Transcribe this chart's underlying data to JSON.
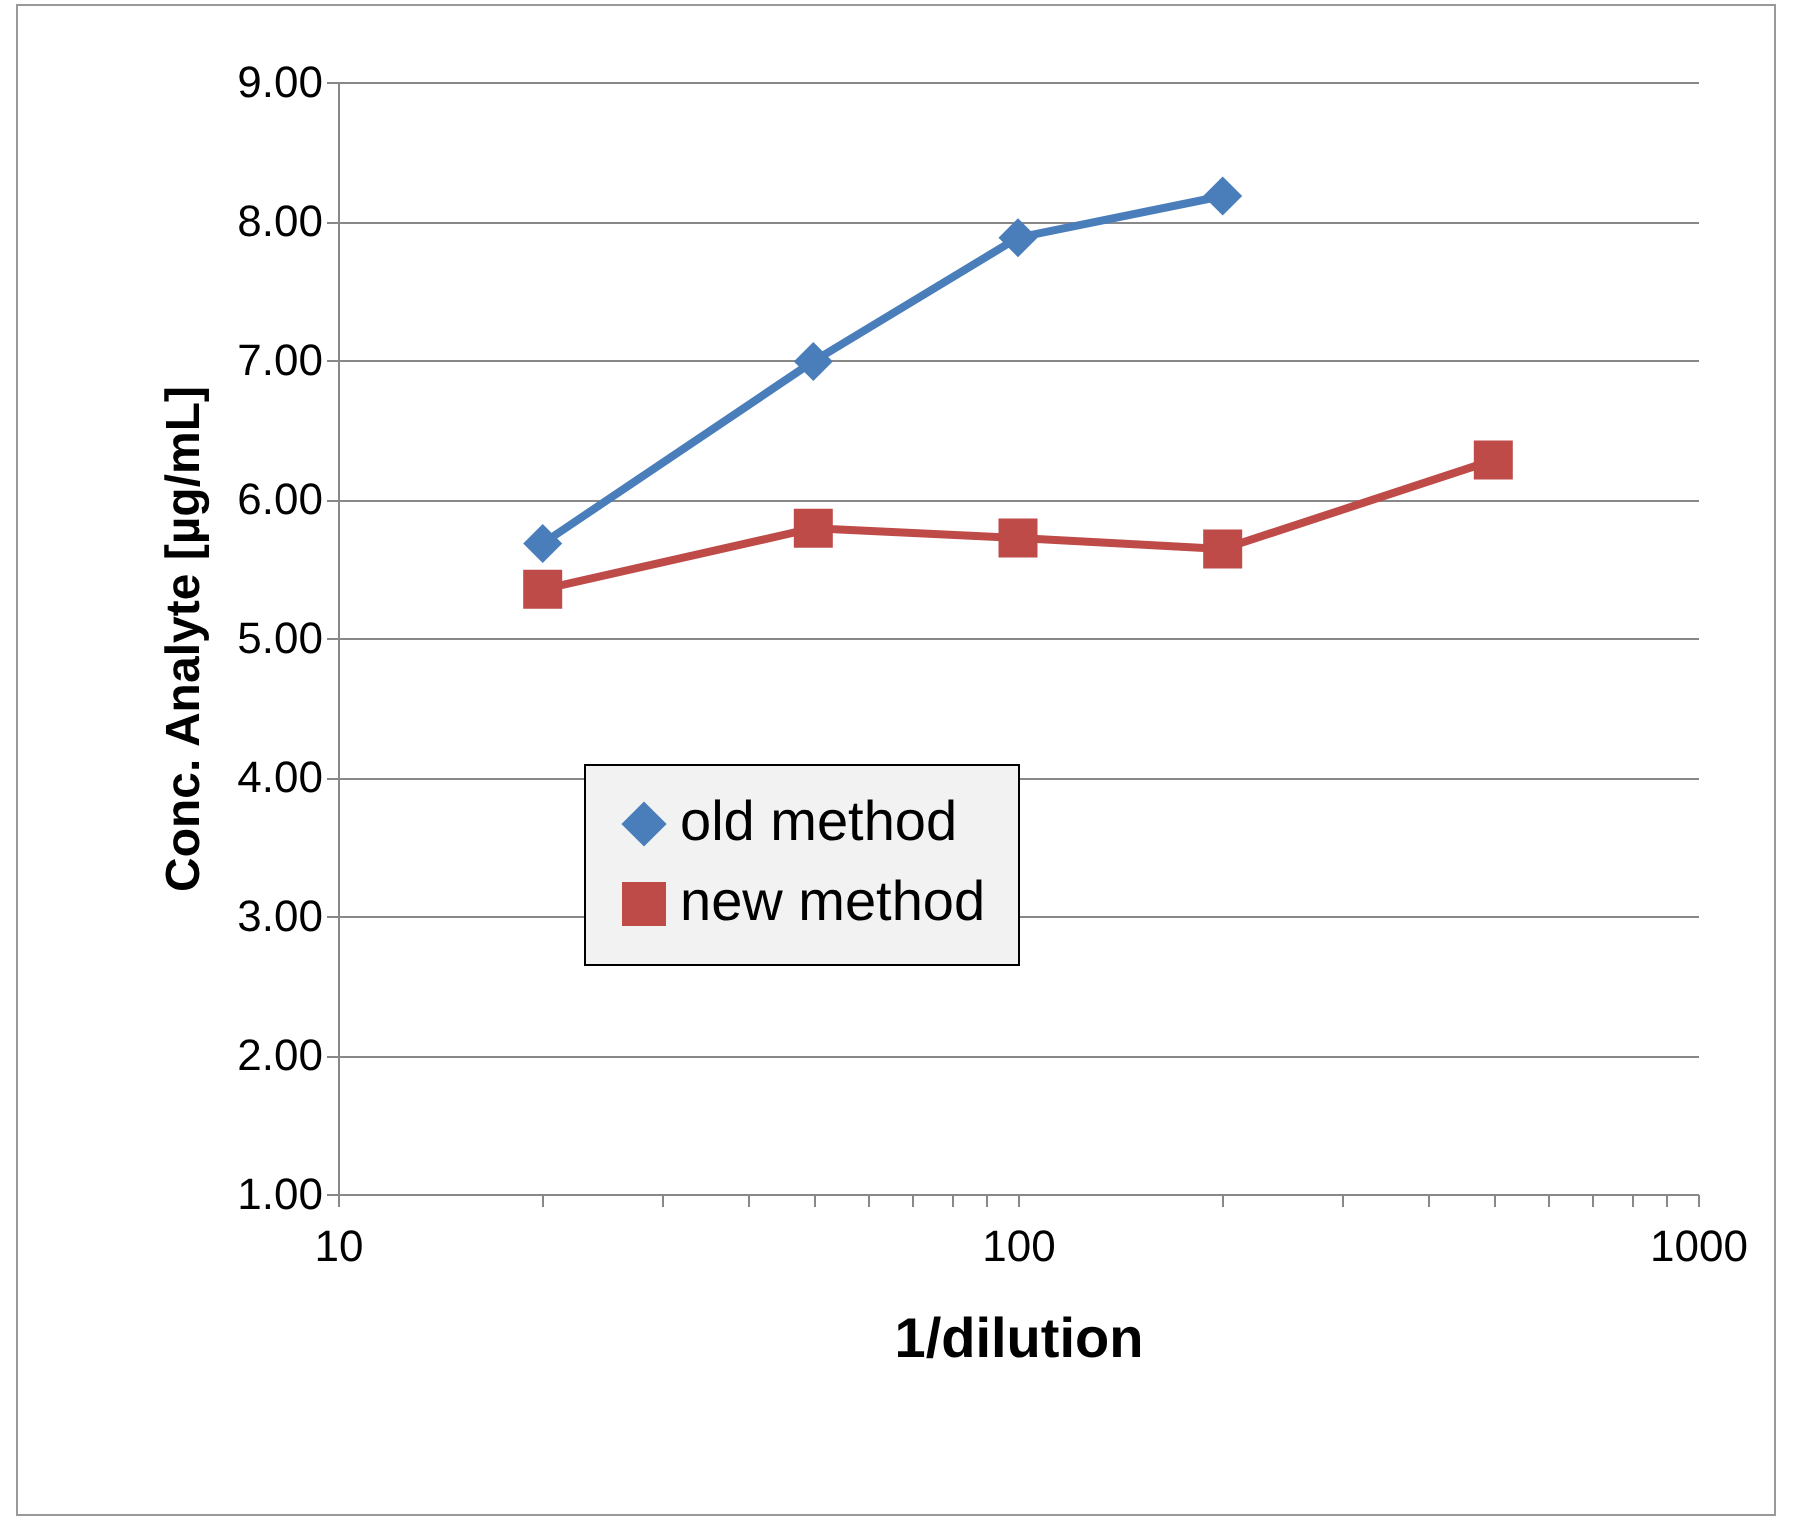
{
  "chart_data": {
    "type": "line",
    "xlabel": "1/dilution",
    "ylabel": "Conc. Analyte [µg/mL]",
    "series": [
      {
        "name": "old method",
        "color": "#4a7ebb",
        "marker": "diamond",
        "x": [
          20,
          50,
          100,
          200
        ],
        "values": [
          5.68,
          6.99,
          7.88,
          8.18
        ]
      },
      {
        "name": "new method",
        "color": "#be4b48",
        "marker": "square",
        "x": [
          20,
          50,
          100,
          200,
          500
        ],
        "values": [
          5.35,
          5.79,
          5.72,
          5.64,
          6.28
        ]
      }
    ],
    "log": "x",
    "xlim": [
      10,
      1000
    ],
    "xticks": [
      10,
      {
        "value": 20,
        "label": null
      },
      {
        "value": 30,
        "label": null
      },
      {
        "value": 40,
        "label": null
      },
      {
        "value": 50,
        "label": null
      },
      {
        "value": 60,
        "label": null
      },
      {
        "value": 70,
        "label": null
      },
      {
        "value": 80,
        "label": null
      },
      {
        "value": 90,
        "label": null
      },
      100,
      {
        "value": 200,
        "label": null
      },
      {
        "value": 300,
        "label": null
      },
      {
        "value": 400,
        "label": null
      },
      {
        "value": 500,
        "label": null
      },
      {
        "value": 600,
        "label": null
      },
      {
        "value": 700,
        "label": null
      },
      {
        "value": 800,
        "label": null
      },
      {
        "value": 900,
        "label": null
      },
      1000
    ],
    "ylim": [
      1,
      9
    ],
    "yticks": [
      {
        "value": 1,
        "label": "1.00"
      },
      {
        "value": 2,
        "label": "2.00"
      },
      {
        "value": 3,
        "label": "3.00"
      },
      {
        "value": 4,
        "label": "4.00"
      },
      {
        "value": 5,
        "label": "5.00"
      },
      {
        "value": 6,
        "label": "6.00"
      },
      {
        "value": 7,
        "label": "7.00"
      },
      {
        "value": 8,
        "label": "8.00"
      },
      {
        "value": 9,
        "label": "9.00"
      }
    ],
    "grid": "y",
    "legend": "left"
  }
}
